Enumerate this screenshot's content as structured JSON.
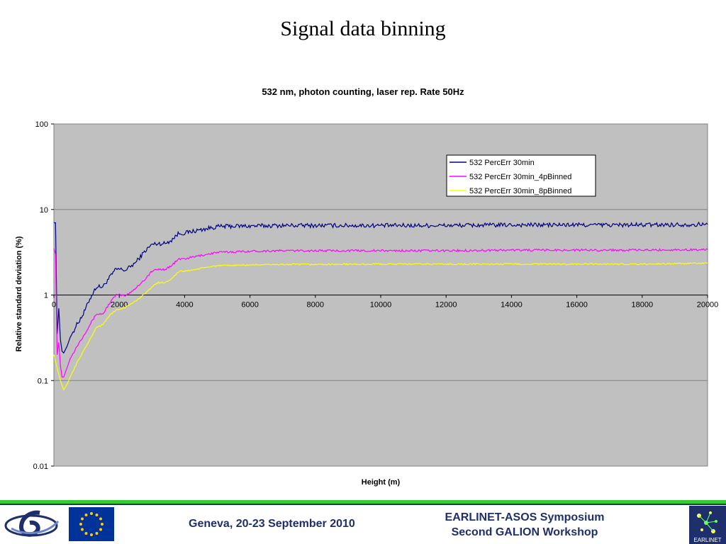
{
  "slide": {
    "title": "Signal data binning"
  },
  "footer": {
    "venue": "Geneva, 20-23 September 2010",
    "event_line1": "EARLINET-ASOS Symposium",
    "event_line2": "Second GALION Workshop",
    "logos": [
      "sixth-framework-logo",
      "eu-flag-icon",
      "earlinet-logo"
    ],
    "earlinet_logo_text": "EARLINET",
    "colors": {
      "rule_green": "#33cc33",
      "rule_blue": "#1f2f6b",
      "text": "#1f2f6b",
      "eu_blue": "#003399",
      "eu_star": "#ffcc00"
    }
  },
  "chart_data": {
    "type": "line",
    "title": "532 nm, photon counting, laser rep. Rate 50Hz",
    "xlabel": "Height (m)",
    "ylabel": "Relative standard deviation (%)",
    "xlim": [
      0,
      20000
    ],
    "ylim": [
      0.01,
      100
    ],
    "yscale": "log",
    "xticks": [
      "0",
      "2000",
      "4000",
      "6000",
      "8000",
      "10000",
      "12000",
      "14000",
      "16000",
      "18000",
      "20000"
    ],
    "yticks": [
      "100",
      "10",
      "1",
      "0.1",
      "0.01"
    ],
    "grid": "horizontal",
    "plot_background": "#c0c0c0",
    "legend_position": "top-right",
    "series": [
      {
        "name": "532 PercErr 30min",
        "color": "#000080",
        "noise": 0.025,
        "x": [
          0,
          50,
          100,
          150,
          200,
          250,
          300,
          400,
          500,
          700,
          900,
          1100,
          1300,
          1500,
          1700,
          1900,
          2000,
          2200,
          2500,
          2800,
          3000,
          3200,
          3400,
          3600,
          3800,
          3900,
          4000,
          4200,
          4500,
          4800,
          5000,
          5500,
          6000,
          7000,
          8000,
          10000,
          12000,
          14000,
          16000,
          18000,
          20000
        ],
        "y": [
          7,
          7,
          0.35,
          0.7,
          0.3,
          0.22,
          0.21,
          0.25,
          0.32,
          0.45,
          0.6,
          0.9,
          1.25,
          1.25,
          1.6,
          2.0,
          2.0,
          1.95,
          2.4,
          3.3,
          3.9,
          4.0,
          4.0,
          4.4,
          5.2,
          5.3,
          5.3,
          5.5,
          5.8,
          6.1,
          6.3,
          6.4,
          6.4,
          6.5,
          6.5,
          6.5,
          6.5,
          6.6,
          6.6,
          6.6,
          6.7
        ]
      },
      {
        "name": "532 PercErr 30min_4pBinned",
        "color": "#ff00ff",
        "noise": 0.012,
        "x": [
          0,
          50,
          100,
          150,
          200,
          250,
          300,
          400,
          500,
          700,
          900,
          1100,
          1300,
          1500,
          1700,
          1900,
          2000,
          2200,
          2500,
          2800,
          3000,
          3200,
          3400,
          3600,
          3800,
          3900,
          4000,
          4200,
          4500,
          4800,
          5000,
          5500,
          6000,
          7000,
          8000,
          10000,
          12000,
          14000,
          16000,
          18000,
          20000
        ],
        "y": [
          3.5,
          3.0,
          0.2,
          0.28,
          0.15,
          0.11,
          0.11,
          0.14,
          0.18,
          0.25,
          0.33,
          0.45,
          0.6,
          0.6,
          0.8,
          1.0,
          1.0,
          0.98,
          1.2,
          1.55,
          1.9,
          2.0,
          2.0,
          2.2,
          2.6,
          2.65,
          2.65,
          2.75,
          2.9,
          3.05,
          3.15,
          3.2,
          3.25,
          3.3,
          3.3,
          3.3,
          3.3,
          3.35,
          3.35,
          3.35,
          3.4
        ]
      },
      {
        "name": "532 PercErr 30min_8pBinned",
        "color": "#ffff00",
        "noise": 0.008,
        "x": [
          0,
          100,
          200,
          300,
          400,
          500,
          700,
          900,
          1100,
          1300,
          1500,
          1700,
          1900,
          2000,
          2200,
          2500,
          2800,
          3000,
          3200,
          3400,
          3600,
          3800,
          3900,
          4000,
          4200,
          4500,
          4800,
          5000,
          5500,
          6000,
          7000,
          8000,
          10000,
          12000,
          14000,
          16000,
          18000,
          20000
        ],
        "y": [
          0.2,
          0.14,
          0.1,
          0.078,
          0.09,
          0.11,
          0.16,
          0.22,
          0.3,
          0.42,
          0.45,
          0.58,
          0.66,
          0.68,
          0.72,
          0.85,
          1.05,
          1.25,
          1.4,
          1.4,
          1.55,
          1.85,
          1.9,
          1.9,
          1.95,
          2.05,
          2.15,
          2.2,
          2.22,
          2.25,
          2.28,
          2.28,
          2.3,
          2.3,
          2.3,
          2.3,
          2.3,
          2.35
        ]
      }
    ]
  }
}
